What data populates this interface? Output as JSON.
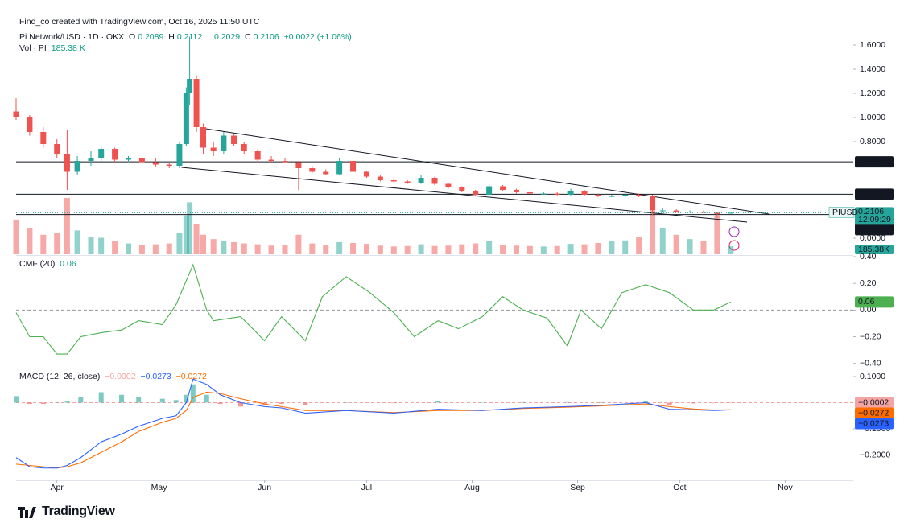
{
  "header": {
    "credit": "Find_co created with TradingView.com, Oct 16, 2025 11:50 UTC"
  },
  "chart_data": [
    {
      "type": "candlestick",
      "title": "Pi Network/USD · 1D · OKX",
      "ohlc_keys": [
        "O",
        "H",
        "L",
        "C"
      ],
      "change_label": "+0.0022 (+1.06%)",
      "up_color": "#26a69a",
      "down_color": "#ef5350",
      "x": [
        0,
        4,
        8,
        12,
        15,
        18,
        22,
        25,
        29,
        33,
        37,
        41,
        45,
        48,
        50,
        51,
        53,
        55,
        58,
        61,
        64,
        67,
        71,
        75,
        79,
        83,
        87,
        91,
        95,
        99,
        103,
        107,
        111,
        115,
        119,
        123,
        127,
        131,
        135,
        139,
        143,
        147,
        151,
        155,
        159,
        163,
        167,
        171,
        175,
        179,
        183,
        187,
        190,
        194,
        198,
        202,
        206,
        210
      ],
      "open": [
        1.05,
        1.0,
        0.88,
        0.78,
        0.7,
        0.55,
        0.64,
        0.66,
        0.74,
        0.65,
        0.66,
        0.63,
        0.61,
        0.6,
        0.78,
        1.2,
        1.32,
        0.92,
        0.75,
        0.72,
        0.85,
        0.78,
        0.72,
        0.65,
        0.64,
        0.63,
        0.58,
        0.55,
        0.53,
        0.64,
        0.55,
        0.51,
        0.48,
        0.47,
        0.46,
        0.5,
        0.45,
        0.42,
        0.39,
        0.36,
        0.43,
        0.4,
        0.38,
        0.37,
        0.37,
        0.36,
        0.39,
        0.36,
        0.35,
        0.35,
        0.36,
        0.35,
        0.23,
        0.23,
        0.22,
        0.22,
        0.21,
        0.2089
      ],
      "high": [
        1.16,
        1.02,
        0.92,
        0.82,
        0.9,
        0.68,
        0.72,
        0.77,
        0.75,
        0.68,
        0.68,
        0.66,
        0.62,
        0.8,
        1.25,
        1.67,
        1.35,
        0.95,
        0.8,
        0.88,
        0.86,
        0.8,
        0.74,
        0.68,
        0.66,
        0.64,
        0.6,
        0.57,
        0.66,
        0.65,
        0.56,
        0.52,
        0.5,
        0.48,
        0.52,
        0.51,
        0.46,
        0.43,
        0.4,
        0.45,
        0.44,
        0.41,
        0.39,
        0.38,
        0.38,
        0.41,
        0.4,
        0.37,
        0.36,
        0.37,
        0.37,
        0.36,
        0.25,
        0.24,
        0.23,
        0.23,
        0.22,
        0.2112
      ],
      "low": [
        0.98,
        0.85,
        0.75,
        0.66,
        0.4,
        0.52,
        0.6,
        0.64,
        0.62,
        0.63,
        0.62,
        0.59,
        0.58,
        0.58,
        0.76,
        1.1,
        0.88,
        0.7,
        0.68,
        0.7,
        0.76,
        0.7,
        0.63,
        0.62,
        0.62,
        0.4,
        0.54,
        0.52,
        0.52,
        0.54,
        0.5,
        0.47,
        0.46,
        0.45,
        0.45,
        0.44,
        0.41,
        0.38,
        0.35,
        0.35,
        0.39,
        0.37,
        0.36,
        0.36,
        0.35,
        0.35,
        0.35,
        0.34,
        0.34,
        0.34,
        0.34,
        0.19,
        0.22,
        0.22,
        0.21,
        0.21,
        0.17,
        0.2029
      ],
      "close": [
        1.0,
        0.88,
        0.78,
        0.7,
        0.55,
        0.64,
        0.66,
        0.74,
        0.65,
        0.66,
        0.63,
        0.61,
        0.6,
        0.78,
        1.2,
        1.32,
        0.92,
        0.75,
        0.72,
        0.85,
        0.78,
        0.72,
        0.65,
        0.64,
        0.63,
        0.58,
        0.55,
        0.53,
        0.64,
        0.55,
        0.51,
        0.48,
        0.47,
        0.46,
        0.5,
        0.45,
        0.42,
        0.39,
        0.36,
        0.43,
        0.4,
        0.38,
        0.37,
        0.37,
        0.36,
        0.39,
        0.36,
        0.35,
        0.35,
        0.36,
        0.35,
        0.23,
        0.23,
        0.22,
        0.22,
        0.21,
        0.2,
        0.2106
      ],
      "volume": {
        "title": "Vol · PI",
        "last_legend_label": "185.38 K",
        "last_axis_label": "185.38K",
        "values": [
          800000,
          600000,
          450000,
          500000,
          1300000,
          550000,
          400000,
          380000,
          300000,
          250000,
          220000,
          230000,
          250000,
          500000,
          900000,
          1200000,
          700000,
          450000,
          350000,
          300000,
          280000,
          250000,
          230000,
          200000,
          220000,
          450000,
          250000,
          220000,
          280000,
          260000,
          240000,
          200000,
          180000,
          190000,
          230000,
          190000,
          200000,
          230000,
          250000,
          300000,
          220000,
          200000,
          190000,
          180000,
          190000,
          240000,
          230000,
          260000,
          300000,
          320000,
          400000,
          1000000,
          600000,
          450000,
          350000,
          300000,
          900000,
          185380
        ]
      },
      "xlim": [
        0,
        246
      ],
      "xticks": [
        {
          "value": 12,
          "label": "Apr"
        },
        {
          "value": 42,
          "label": "May"
        },
        {
          "value": 73,
          "label": "Jun"
        },
        {
          "value": 103,
          "label": "Jul"
        },
        {
          "value": 134,
          "label": "Aug"
        },
        {
          "value": 165,
          "label": "Sep"
        },
        {
          "value": 195,
          "label": "Oct"
        },
        {
          "value": 226,
          "label": "Nov"
        }
      ],
      "ylim": [
        -0.1333,
        1.7067
      ],
      "yticks": [
        {
          "value": 1.6,
          "label": "1.6000"
        },
        {
          "value": 1.4,
          "label": "1.4000"
        },
        {
          "value": 1.2,
          "label": "1.2000"
        },
        {
          "value": 1.0,
          "label": "1.0000"
        },
        {
          "value": 0.8,
          "label": "0.8000"
        },
        {
          "value": 0,
          "label": "0.0000"
        }
      ],
      "levels": [
        0.6329,
        0.3643,
        0.1956
      ],
      "trendlines": [
        {
          "x": [
            55.7,
            221.2
          ],
          "y": [
            0.907,
            0.2
          ]
        },
        {
          "x": [
            48.6,
            214.8
          ],
          "y": [
            0.587,
            0.133
          ]
        }
      ],
      "last_price": {
        "symbol": "PIUSD",
        "countdown": "12:09:29"
      }
    },
    {
      "type": "line",
      "title": "CMF (20)",
      "color": "#4caf50",
      "x": [
        0,
        4,
        8,
        12,
        15,
        19,
        25,
        31,
        36,
        43,
        47,
        52,
        56,
        58,
        66,
        73,
        78,
        85,
        90,
        97,
        104,
        111,
        117,
        124,
        130,
        137,
        143,
        149,
        156,
        162,
        166,
        172,
        178,
        185,
        192,
        199,
        205,
        210
      ],
      "values": [
        -0.02,
        -0.2,
        -0.2,
        -0.33,
        -0.33,
        -0.2,
        -0.17,
        -0.15,
        -0.08,
        -0.11,
        0.04,
        0.34,
        0.0,
        -0.08,
        -0.05,
        -0.23,
        -0.05,
        -0.23,
        0.1,
        0.25,
        0.13,
        -0.02,
        -0.2,
        -0.08,
        -0.14,
        -0.05,
        0.1,
        0.0,
        -0.06,
        -0.27,
        0.0,
        -0.14,
        0.13,
        0.19,
        0.13,
        0.0,
        0.0,
        0.06
      ],
      "xlim": [
        0,
        246
      ],
      "ylim": [
        -0.42,
        0.4
      ],
      "yticks": [
        {
          "value": 0.4,
          "label": "0.40"
        },
        {
          "value": 0.2,
          "label": "0.20"
        },
        {
          "value": 0,
          "label": "0.00"
        },
        {
          "value": -0.2,
          "label": "−0.20"
        },
        {
          "value": -0.4,
          "label": "−0.40"
        }
      ]
    },
    {
      "type": "macd",
      "title": "MACD (12, 26, close)",
      "x": [
        0,
        4,
        8,
        12,
        15,
        19,
        25,
        31,
        36,
        43,
        47,
        50,
        52,
        56,
        60,
        66,
        73,
        78,
        85,
        97,
        111,
        124,
        137,
        149,
        162,
        172,
        185,
        192,
        199,
        205,
        210
      ],
      "histogram": [
        0.025,
        -0.005,
        -0.005,
        0,
        0.005,
        0.02,
        0.04,
        0.03,
        0.02,
        0.015,
        0.01,
        0.03,
        0.07,
        0.03,
        -0.005,
        -0.015,
        -0.01,
        -0.005,
        -0.01,
        0,
        -0.002,
        0.005,
        0,
        0.002,
        0.002,
        0.002,
        0.005,
        -0.01,
        -0.003,
        -0.002,
        -0.0002
      ],
      "macd": [
        -0.21,
        -0.245,
        -0.25,
        -0.25,
        -0.24,
        -0.21,
        -0.15,
        -0.12,
        -0.09,
        -0.06,
        -0.05,
        0.0,
        0.09,
        0.07,
        0.03,
        0.0,
        -0.015,
        -0.02,
        -0.04,
        -0.03,
        -0.04,
        -0.025,
        -0.03,
        -0.02,
        -0.015,
        -0.01,
        0.0,
        -0.025,
        -0.027,
        -0.03,
        -0.0273
      ],
      "signal": [
        -0.235,
        -0.24,
        -0.245,
        -0.25,
        -0.245,
        -0.23,
        -0.19,
        -0.15,
        -0.11,
        -0.075,
        -0.06,
        -0.03,
        0.02,
        0.04,
        0.035,
        0.015,
        -0.005,
        -0.015,
        -0.03,
        -0.03,
        -0.038,
        -0.03,
        -0.03,
        -0.022,
        -0.017,
        -0.012,
        -0.005,
        -0.015,
        -0.024,
        -0.028,
        -0.0272
      ],
      "colors": {
        "histogram_up": "#26a69a",
        "histogram_down": "#ef5350",
        "histogram_label": "#f4a4a2",
        "macd": "#2962ff",
        "signal": "#ff6d00"
      },
      "last_labels": {
        "histogram": "−0.0002",
        "macd": "−0.0273",
        "signal": "−0.0272"
      },
      "xlim": [
        0,
        246
      ],
      "ylim": [
        -0.2908,
        0.1246
      ],
      "yticks": [
        {
          "value": 0.1,
          "label": "0.1000"
        },
        {
          "value": -0.1,
          "label": "−0.1000"
        },
        {
          "value": -0.2,
          "label": "−0.2000"
        }
      ]
    }
  ],
  "footer": {
    "logo": "TradingView"
  }
}
